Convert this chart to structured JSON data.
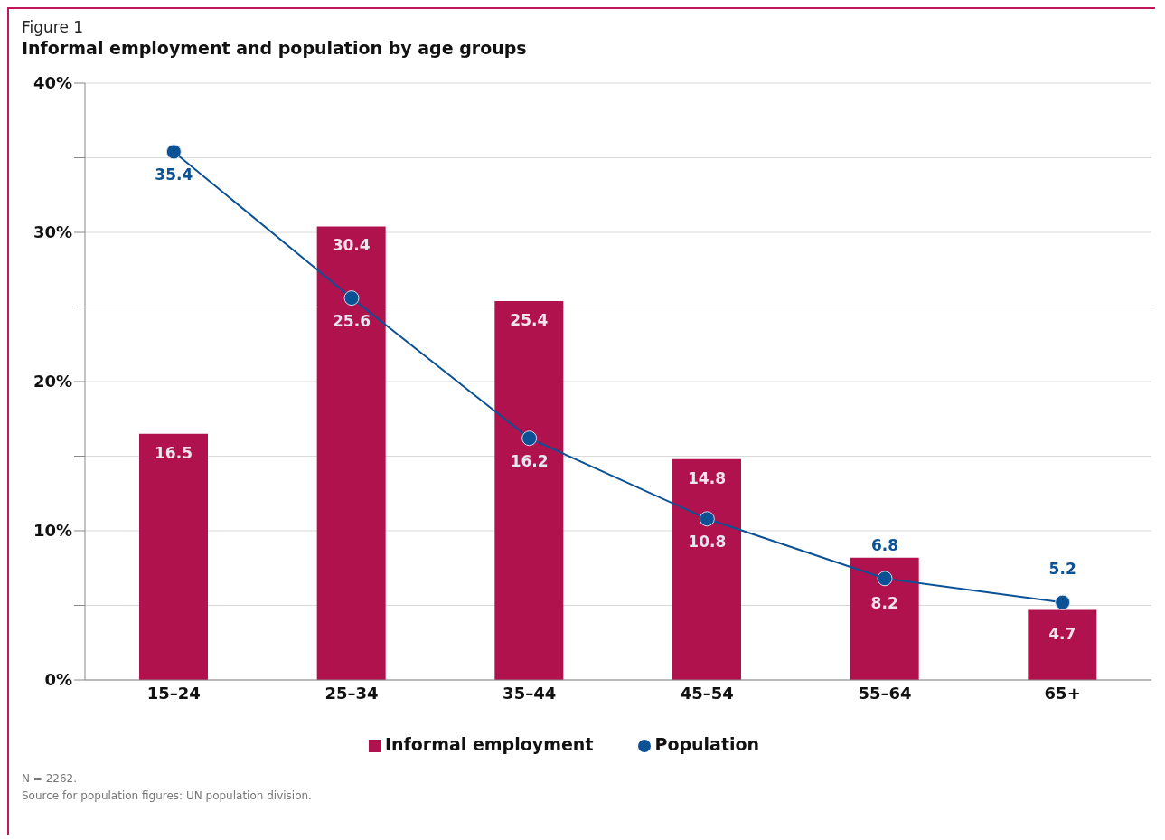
{
  "chart_data": {
    "type": "bar",
    "subtitle": "Figure 1",
    "title": "Informal employment and population by age groups",
    "categories": [
      "15–24",
      "25–34",
      "35–44",
      "45–54",
      "55–64",
      "65+"
    ],
    "series": [
      {
        "name": "Informal employment",
        "color": "#b0124e",
        "values": [
          16.5,
          30.4,
          25.4,
          14.8,
          8.2,
          4.7
        ]
      },
      {
        "name": "Population",
        "type": "line",
        "color": "#0a5196",
        "values": [
          35.4,
          25.6,
          16.2,
          10.8,
          6.8,
          5.2
        ]
      }
    ],
    "ylim": [
      0,
      40
    ],
    "yticks": [
      {
        "value": 0,
        "label": "0%"
      },
      {
        "value": 5,
        "label": null
      },
      {
        "value": 10,
        "label": "10%"
      },
      {
        "value": 15,
        "label": null
      },
      {
        "value": 20,
        "label": "20%"
      },
      {
        "value": 25,
        "label": null
      },
      {
        "value": 30,
        "label": "30%"
      },
      {
        "value": 35,
        "label": null
      },
      {
        "value": 40,
        "label": "40%"
      }
    ],
    "grid": "y",
    "legend": "bottom",
    "marker": "circle",
    "line_style": "solid",
    "data_labels": true,
    "annotations": [
      "N = 2262.",
      "Source for population figures: UN population division."
    ]
  }
}
